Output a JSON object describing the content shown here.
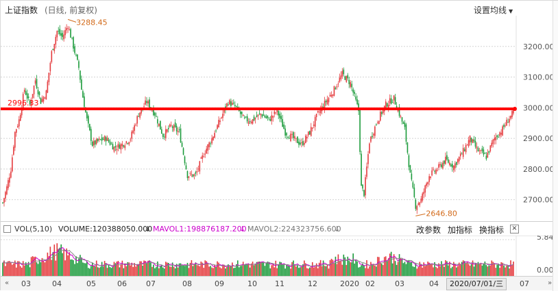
{
  "header": {
    "index_name": "上证指数",
    "subtitle": "(日线, 前复权)",
    "ma_setting": "设置均线"
  },
  "price_axis": {
    "ticks": [
      "3200.00",
      "3100.00",
      "3000.00",
      "2900.00",
      "2800.00",
      "2700.00"
    ],
    "tick_values": [
      3200,
      3100,
      3000,
      2900,
      2800,
      2700
    ],
    "range": [
      2630,
      3300
    ]
  },
  "annotations": {
    "high": "3288.45",
    "low": "2646.80",
    "ref_line": "2996.33",
    "ref_value": 2996.33
  },
  "volume_header": {
    "box": "□",
    "name": "VOL(5,10)",
    "volume": "VOLUME:120388050.000",
    "mavol1": "MAVOL1:198876187.200",
    "mavol2": "MAVOL2:224323756.600",
    "arrow": "↓",
    "btn_params": "改参数",
    "btn_add": "加指标",
    "btn_switch": "换指标",
    "btn_close": "×"
  },
  "volume_axis": {
    "ticks": [
      "5.84",
      "0.00"
    ]
  },
  "time_axis": {
    "months": [
      "03",
      "04",
      "05",
      "06",
      "07",
      "08",
      "09",
      "10",
      "11",
      "12",
      "2020",
      "02",
      "03",
      "04",
      "07"
    ],
    "cursor_date": "2020/07/01/三"
  },
  "colors": {
    "up": "#e4393c",
    "down": "#1a9a3a",
    "ref_line": "#ff0000",
    "annotation": "#d26a1a",
    "mavol1": "#cc00cc",
    "mavol2": "#888888"
  },
  "icons": {
    "nav_left": "«",
    "nav_right": "»",
    "caret": "▼"
  }
}
